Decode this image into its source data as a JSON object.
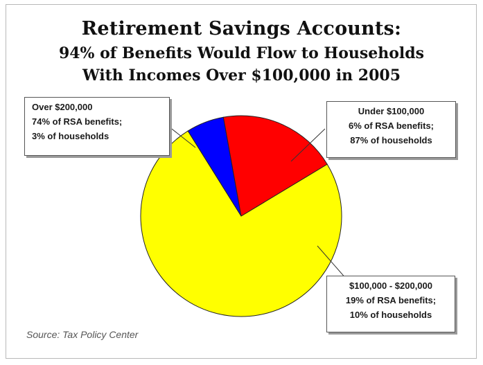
{
  "chart_data": {
    "type": "pie",
    "title": "Retirement Savings Accounts:",
    "subtitle_lines": [
      "94% of Benefits Would Flow to Households",
      "With Incomes Over $100,000 in 2005"
    ],
    "slices": [
      {
        "name": "Over $200,000",
        "value": 74,
        "color": "#ffff00",
        "label_lines": [
          "Over $200,000",
          "74% of RSA benefits;",
          "3% of households"
        ]
      },
      {
        "name": "Under $100,000",
        "value": 6,
        "color": "#0000ff",
        "label_lines": [
          "Under $100,000",
          "6% of RSA benefits;",
          "87% of households"
        ]
      },
      {
        "name": "$100,000 - $200,000",
        "value": 19,
        "color": "#ff0000",
        "label_lines": [
          "$100,000 - $200,000",
          "19% of RSA benefits;",
          "10% of households"
        ]
      }
    ],
    "source": "Source: Tax Policy Center"
  }
}
